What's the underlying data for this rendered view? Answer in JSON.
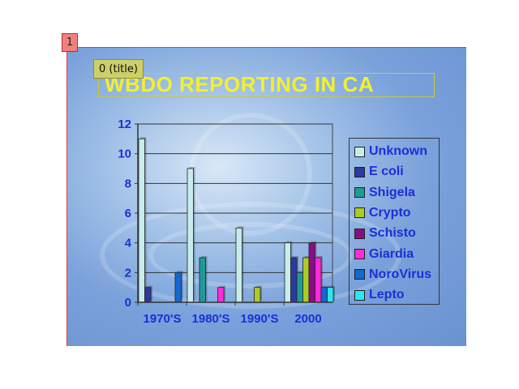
{
  "slide_number": "1",
  "placeholder_tag": "0 (title)",
  "chart_data": {
    "type": "bar",
    "title": "WBDO REPORTING IN CA",
    "categories": [
      "1970'S",
      "1980'S",
      "1990'S",
      "2000"
    ],
    "ylim": [
      0,
      12
    ],
    "yticks": [
      "0",
      "2",
      "4",
      "6",
      "8",
      "10",
      "12"
    ],
    "grid": true,
    "legend_position": "right",
    "series": [
      {
        "name": "Unknown",
        "color": "#c8ecec",
        "values": [
          11,
          9,
          5,
          4
        ]
      },
      {
        "name": "E coli",
        "color": "#2b3aa0",
        "values": [
          1,
          0,
          0,
          3
        ]
      },
      {
        "name": "Shigela",
        "color": "#1e9a9a",
        "values": [
          0,
          3,
          0,
          2
        ]
      },
      {
        "name": "Crypto",
        "color": "#aecb22",
        "values": [
          0,
          0,
          1,
          3
        ]
      },
      {
        "name": "Schisto",
        "color": "#8a0c8a",
        "values": [
          0,
          0,
          0,
          4
        ]
      },
      {
        "name": "Giardia",
        "color": "#ff2bd6",
        "values": [
          0,
          1,
          0,
          3
        ]
      },
      {
        "name": "NoroVirus",
        "color": "#1468d0",
        "values": [
          2,
          0,
          0,
          1
        ]
      },
      {
        "name": "Lepto",
        "color": "#2ee6ee",
        "values": [
          0,
          0,
          0,
          1
        ]
      }
    ]
  }
}
